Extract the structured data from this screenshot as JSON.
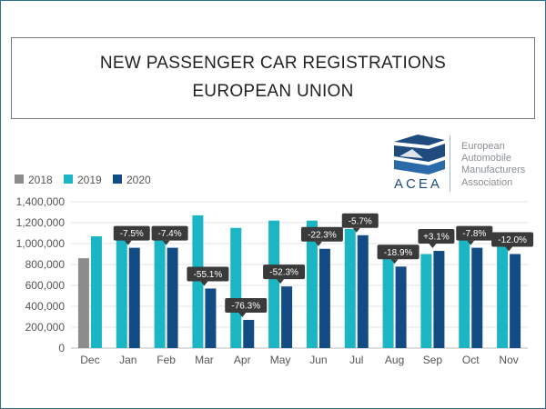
{
  "header": {
    "title_line1": "NEW PASSENGER CAR REGISTRATIONS",
    "title_line2": "EUROPEAN UNION"
  },
  "logo": {
    "wordmark": "ACEA",
    "org_line1": "European",
    "org_line2": "Automobile",
    "org_line3": "Manufacturers",
    "org_line4": "Association",
    "color": "#1f4b7e"
  },
  "chart_data": {
    "type": "bar",
    "title": "NEW PASSENGER CAR REGISTRATIONS — EUROPEAN UNION",
    "xlabel": "",
    "ylabel": "",
    "categories": [
      "Dec",
      "Jan",
      "Feb",
      "Mar",
      "Apr",
      "May",
      "Jun",
      "Jul",
      "Aug",
      "Sep",
      "Oct",
      "Nov"
    ],
    "ylim": [
      0,
      1400000
    ],
    "yticks": [
      0,
      200000,
      400000,
      600000,
      800000,
      1000000,
      1200000,
      1400000
    ],
    "ytick_labels": [
      "0",
      "200,000",
      "400,000",
      "600,000",
      "800,000",
      "1,000,000",
      "1,200,000",
      "1,400,000"
    ],
    "grid": true,
    "legend_position": "top-left",
    "series": [
      {
        "name": "2018",
        "color": "#8c8c8c",
        "values": [
          860000,
          null,
          null,
          null,
          null,
          null,
          null,
          null,
          null,
          null,
          null,
          null
        ]
      },
      {
        "name": "2019",
        "color": "#1cb5c3",
        "values": [
          1070000,
          1040000,
          1040000,
          1270000,
          1150000,
          1220000,
          1220000,
          1140000,
          960000,
          900000,
          1040000,
          1020000
        ]
      },
      {
        "name": "2020",
        "color": "#134b85",
        "values": [
          null,
          960000,
          960000,
          570000,
          270000,
          590000,
          950000,
          1080000,
          780000,
          930000,
          960000,
          900000
        ]
      }
    ],
    "annotations": [
      {
        "category": "Jan",
        "text": "-7.5%"
      },
      {
        "category": "Feb",
        "text": "-7.4%"
      },
      {
        "category": "Mar",
        "text": "-55.1%"
      },
      {
        "category": "Apr",
        "text": "-76.3%"
      },
      {
        "category": "May",
        "text": "-52.3%"
      },
      {
        "category": "Jun",
        "text": "-22.3%"
      },
      {
        "category": "Jul",
        "text": "-5.7%"
      },
      {
        "category": "Aug",
        "text": "-18.9%"
      },
      {
        "category": "Sep",
        "text": "+3.1%"
      },
      {
        "category": "Oct",
        "text": "-7.8%"
      },
      {
        "category": "Nov",
        "text": "-12.0%"
      }
    ],
    "annotation_color": "#3a3a3a",
    "grid_color": "#e3e3e3",
    "axis_color": "#bdbdbd"
  }
}
